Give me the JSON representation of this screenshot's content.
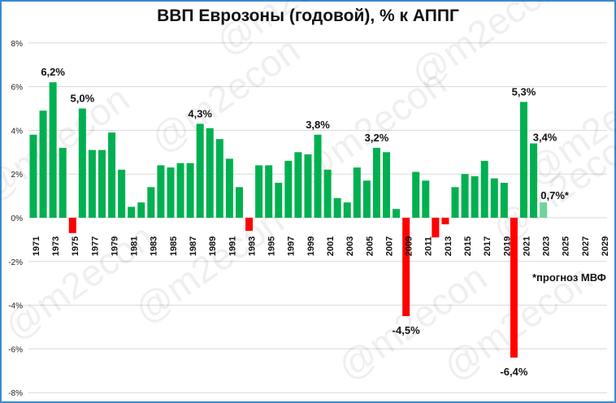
{
  "chart_data": {
    "type": "bar",
    "title": "ВВП Еврозоны (годовой), % к АППГ",
    "xlabel": "",
    "ylabel": "",
    "ylim": [
      -8,
      8
    ],
    "yticks": [
      "8%",
      "6%",
      "4%",
      "2%",
      "0%",
      "-2%",
      "-4%",
      "-6%",
      "-8%"
    ],
    "grid": true,
    "legend": null,
    "categories": [
      1971,
      1972,
      1973,
      1974,
      1975,
      1976,
      1977,
      1978,
      1979,
      1980,
      1981,
      1982,
      1983,
      1984,
      1985,
      1986,
      1987,
      1988,
      1989,
      1990,
      1991,
      1992,
      1993,
      1994,
      1995,
      1996,
      1997,
      1998,
      1999,
      2000,
      2001,
      2002,
      2003,
      2004,
      2005,
      2006,
      2007,
      2008,
      2009,
      2010,
      2011,
      2012,
      2013,
      2014,
      2015,
      2016,
      2017,
      2018,
      2019,
      2020,
      2021,
      2022,
      2023,
      2024,
      2025,
      2026,
      2027,
      2028,
      2029
    ],
    "xtick_labels": [
      "1971",
      "1973",
      "1975",
      "1977",
      "1979",
      "1981",
      "1983",
      "1985",
      "1987",
      "1989",
      "1991",
      "1993",
      "1995",
      "1997",
      "1999",
      "2001",
      "2003",
      "2005",
      "2007",
      "2009",
      "2011",
      "2013",
      "2015",
      "2017",
      "2019",
      "2021",
      "2023",
      "2025",
      "2027",
      "2029"
    ],
    "values": [
      3.8,
      4.9,
      6.2,
      3.2,
      -0.7,
      5.0,
      3.1,
      3.1,
      3.9,
      2.2,
      0.5,
      0.7,
      1.4,
      2.4,
      2.3,
      2.5,
      2.5,
      4.3,
      4.1,
      3.6,
      2.7,
      1.4,
      -0.6,
      2.4,
      2.4,
      1.6,
      2.6,
      3.0,
      2.9,
      3.8,
      2.2,
      0.9,
      0.7,
      2.3,
      1.7,
      3.2,
      3.0,
      0.4,
      -4.5,
      2.1,
      1.7,
      -0.9,
      -0.3,
      1.4,
      2.0,
      1.9,
      2.6,
      1.8,
      1.6,
      -6.4,
      5.3,
      3.4,
      0.7,
      null,
      null,
      null,
      null,
      null,
      null
    ],
    "forecast_years": [
      2023
    ],
    "annotations": [
      {
        "year": 1973,
        "text": "6,2%"
      },
      {
        "year": 1976,
        "text": "5,0%"
      },
      {
        "year": 1988,
        "text": "4,3%"
      },
      {
        "year": 2000,
        "text": "3,8%"
      },
      {
        "year": 2006,
        "text": "3,2%"
      },
      {
        "year": 2009,
        "text": "-4,5%"
      },
      {
        "year": 2020,
        "text": "-6,4%"
      },
      {
        "year": 2021,
        "text": "5,3%"
      },
      {
        "year": 2022,
        "text": "3,4%"
      },
      {
        "year": 2023,
        "text": "0,7%*"
      }
    ],
    "footnote": "*прогноз МВФ",
    "colors": {
      "positive": "#00b050",
      "negative": "#ff0000",
      "forecast": "#6fd39a",
      "grid": "#d9d9d9",
      "border": "#3a8ad0"
    }
  },
  "watermark": "@m2econ"
}
